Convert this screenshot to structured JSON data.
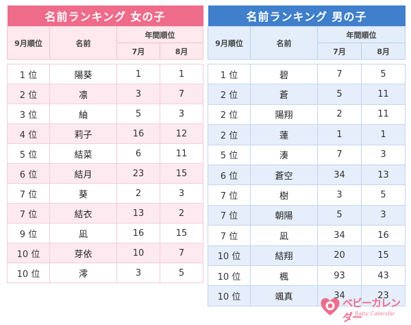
{
  "girls": {
    "title": "名前ランキング 女の子",
    "col_rank": "9月順位",
    "col_name": "名前",
    "col_yearly": "年間順位",
    "col_jul": "7月",
    "col_aug": "8月",
    "rows": [
      {
        "rank": "1 位",
        "name": "陽葵",
        "jul": "1",
        "aug": "1"
      },
      {
        "rank": "2 位",
        "name": "凛",
        "jul": "3",
        "aug": "7"
      },
      {
        "rank": "3 位",
        "name": "紬",
        "jul": "5",
        "aug": "3"
      },
      {
        "rank": "4 位",
        "name": "莉子",
        "jul": "16",
        "aug": "12"
      },
      {
        "rank": "5 位",
        "name": "結菜",
        "jul": "6",
        "aug": "11"
      },
      {
        "rank": "6 位",
        "name": "結月",
        "jul": "23",
        "aug": "15"
      },
      {
        "rank": "7 位",
        "name": "葵",
        "jul": "2",
        "aug": "3"
      },
      {
        "rank": "7 位",
        "name": "結衣",
        "jul": "13",
        "aug": "2"
      },
      {
        "rank": "9 位",
        "name": "凪",
        "jul": "16",
        "aug": "15"
      },
      {
        "rank": "10 位",
        "name": "芽依",
        "jul": "10",
        "aug": "7"
      },
      {
        "rank": "10 位",
        "name": "澪",
        "jul": "3",
        "aug": "5"
      }
    ]
  },
  "boys": {
    "title": "名前ランキング 男の子",
    "col_rank": "9月順位",
    "col_name": "名前",
    "col_yearly": "年間順位",
    "col_jul": "7月",
    "col_aug": "8月",
    "rows": [
      {
        "rank": "1 位",
        "name": "碧",
        "jul": "7",
        "aug": "5"
      },
      {
        "rank": "2 位",
        "name": "蒼",
        "jul": "5",
        "aug": "11"
      },
      {
        "rank": "2 位",
        "name": "陽翔",
        "jul": "2",
        "aug": "11"
      },
      {
        "rank": "2 位",
        "name": "蓮",
        "jul": "1",
        "aug": "1"
      },
      {
        "rank": "5 位",
        "name": "湊",
        "jul": "7",
        "aug": "3"
      },
      {
        "rank": "6 位",
        "name": "蒼空",
        "jul": "34",
        "aug": "13"
      },
      {
        "rank": "7 位",
        "name": "樹",
        "jul": "3",
        "aug": "5"
      },
      {
        "rank": "7 位",
        "name": "朝陽",
        "jul": "5",
        "aug": "3"
      },
      {
        "rank": "7 位",
        "name": "凪",
        "jul": "34",
        "aug": "16"
      },
      {
        "rank": "10 位",
        "name": "結翔",
        "jul": "20",
        "aug": "15"
      },
      {
        "rank": "10 位",
        "name": "楓",
        "jul": "93",
        "aug": "43"
      },
      {
        "rank": "10 位",
        "name": "颯真",
        "jul": "34",
        "aug": "23"
      }
    ]
  },
  "logo": {
    "icon": "heart-baby-icon",
    "text": "ベビーカレンダー",
    "sub": "Baby Calendar"
  },
  "colors": {
    "girls_accent": "#ee6b8a",
    "boys_accent": "#3f7fcb"
  }
}
